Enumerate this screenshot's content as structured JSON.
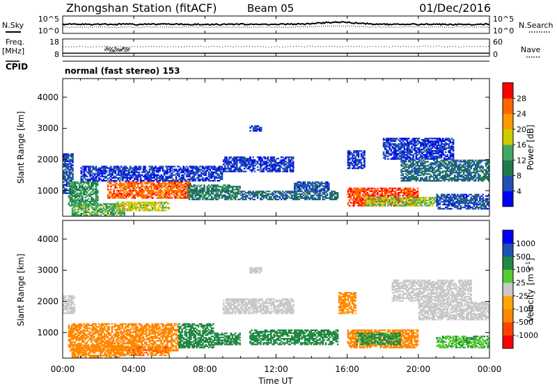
{
  "header": {
    "station": "Zhongshan Station (fitACF)",
    "beam": "Beam 05",
    "date": "01/Dec/2016"
  },
  "top_panels": {
    "nsky_label": "N.Sky",
    "nsearch_label": "N.Search",
    "noise_ticks_left": [
      "10^5",
      "10^0"
    ],
    "noise_ticks_right": [
      "10^5",
      "10^0"
    ],
    "freq_label_line1": "Freq.",
    "freq_label_line2": "[MHz]",
    "freq_ticks": [
      "18",
      "8"
    ],
    "nave_label": "Nave",
    "nave_ticks": [
      "60",
      "0"
    ],
    "cpid_label": "CPID",
    "cpid_text": "normal (fast stereo) 153"
  },
  "colors": {
    "power_scale": [
      "#0000ff",
      "#2050b0",
      "#1f7a4a",
      "#40a860",
      "#cccc00",
      "#ff9900",
      "#ff6600",
      "#ff0000"
    ],
    "velocity_scale": [
      "#ff0000",
      "#ff4400",
      "#ff8800",
      "#ffa500",
      "#c8c8c8",
      "#55cc33",
      "#228844",
      "#2050b0",
      "#0000ff"
    ]
  },
  "chart_data": [
    {
      "type": "heatmap",
      "name": "power",
      "ylabel": "Slant Range [km]",
      "xlabel": "Time UT",
      "x_ticks": [
        "00:00",
        "04:00",
        "08:00",
        "12:00",
        "16:00",
        "20:00",
        "00:00"
      ],
      "y_ticks": [
        "1000",
        "2000",
        "3000",
        "4000"
      ],
      "ylim": [
        180,
        4600
      ],
      "xlim_hours": [
        0,
        24
      ],
      "colorbar_label": "Power [dB]",
      "colorbar_ticks": [
        "4",
        "8",
        "12",
        "16",
        "20",
        "24",
        "28"
      ],
      "colorbar_range": [
        0,
        32
      ],
      "regions": [
        {
          "t": [
            0.0,
            0.6
          ],
          "r": [
            900,
            2200
          ],
          "v": 6
        },
        {
          "t": [
            0.3,
            2.0
          ],
          "r": [
            500,
            1300
          ],
          "v": 12
        },
        {
          "t": [
            0.5,
            3.5
          ],
          "r": [
            200,
            600
          ],
          "v": 14
        },
        {
          "t": [
            2.5,
            7.2
          ],
          "r": [
            750,
            1300
          ],
          "v": 26
        },
        {
          "t": [
            3.0,
            6.0
          ],
          "r": [
            350,
            650
          ],
          "v": 18
        },
        {
          "t": [
            1.0,
            9.0
          ],
          "r": [
            1300,
            1800
          ],
          "v": 5
        },
        {
          "t": [
            7.0,
            10.0
          ],
          "r": [
            700,
            1200
          ],
          "v": 10
        },
        {
          "t": [
            9.0,
            13.0
          ],
          "r": [
            1600,
            2100
          ],
          "v": 5
        },
        {
          "t": [
            10.5,
            11.2
          ],
          "r": [
            2900,
            3100
          ],
          "v": 5
        },
        {
          "t": [
            10.0,
            15.5
          ],
          "r": [
            700,
            1000
          ],
          "v": 8
        },
        {
          "t": [
            13.0,
            15.0
          ],
          "r": [
            1000,
            1300
          ],
          "v": 6
        },
        {
          "t": [
            16.0,
            17.0
          ],
          "r": [
            1700,
            2300
          ],
          "v": 5
        },
        {
          "t": [
            16.0,
            20.0
          ],
          "r": [
            500,
            1100
          ],
          "v": 27
        },
        {
          "t": [
            17.0,
            21.0
          ],
          "r": [
            500,
            800
          ],
          "v": 16
        },
        {
          "t": [
            18.0,
            22.0
          ],
          "r": [
            2000,
            2700
          ],
          "v": 5
        },
        {
          "t": [
            19.0,
            24.0
          ],
          "r": [
            1300,
            2000
          ],
          "v": 8
        },
        {
          "t": [
            21.0,
            24.0
          ],
          "r": [
            400,
            900
          ],
          "v": 6
        }
      ]
    },
    {
      "type": "heatmap",
      "name": "velocity",
      "ylabel": "Slant Range [km]",
      "xlabel": "Time UT",
      "x_ticks": [
        "00:00",
        "04:00",
        "08:00",
        "12:00",
        "16:00",
        "20:00",
        "00:00"
      ],
      "y_ticks": [
        "1000",
        "2000",
        "3000",
        "4000"
      ],
      "ylim": [
        180,
        4600
      ],
      "xlim_hours": [
        0,
        24
      ],
      "colorbar_label": "Velocity",
      "colorbar_unit": "[m s",
      "colorbar_unit_exp": "-1",
      "colorbar_unit_close": "]",
      "colorbar_ticks": [
        "-1000",
        "-500",
        "-100",
        "-25",
        "25",
        "100",
        "500",
        "1000"
      ],
      "regions": [
        {
          "t": [
            0.0,
            0.7
          ],
          "r": [
            1600,
            2200
          ],
          "v": 0
        },
        {
          "t": [
            0.3,
            6.5
          ],
          "r": [
            400,
            1300
          ],
          "v": -250
        },
        {
          "t": [
            0.5,
            3.5
          ],
          "r": [
            200,
            600
          ],
          "v": -300
        },
        {
          "t": [
            3.5,
            6.0
          ],
          "r": [
            250,
            550
          ],
          "v": -400
        },
        {
          "t": [
            6.5,
            8.5
          ],
          "r": [
            500,
            1300
          ],
          "v": 200
        },
        {
          "t": [
            8.5,
            10.0
          ],
          "r": [
            600,
            1000
          ],
          "v": 300
        },
        {
          "t": [
            9.0,
            13.0
          ],
          "r": [
            1600,
            2100
          ],
          "v": 0
        },
        {
          "t": [
            10.5,
            11.2
          ],
          "r": [
            2900,
            3100
          ],
          "v": 0
        },
        {
          "t": [
            10.5,
            15.5
          ],
          "r": [
            600,
            1100
          ],
          "v": 250
        },
        {
          "t": [
            15.5,
            16.5
          ],
          "r": [
            1600,
            2300
          ],
          "v": -150
        },
        {
          "t": [
            16.0,
            20.0
          ],
          "r": [
            500,
            1100
          ],
          "v": -200
        },
        {
          "t": [
            16.5,
            19.0
          ],
          "r": [
            600,
            1000
          ],
          "v": 150
        },
        {
          "t": [
            18.5,
            23.0
          ],
          "r": [
            2000,
            2700
          ],
          "v": 0
        },
        {
          "t": [
            20.0,
            24.0
          ],
          "r": [
            1400,
            2000
          ],
          "v": 0
        },
        {
          "t": [
            21.0,
            24.0
          ],
          "r": [
            500,
            900
          ],
          "v": 80
        }
      ]
    }
  ]
}
